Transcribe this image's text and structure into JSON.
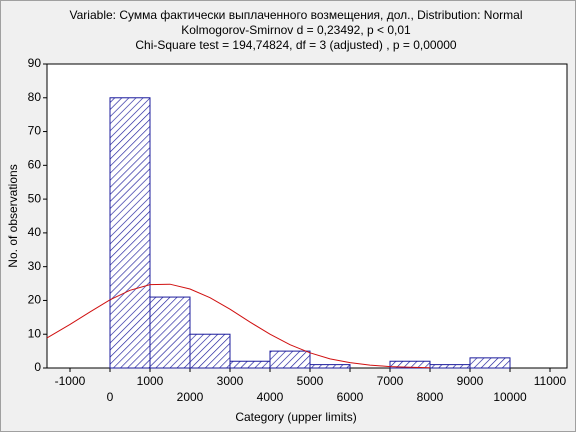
{
  "chart_data": {
    "type": "histogram",
    "title": [
      "Variable: Сумма фактически выплаченного возмещения, дол., Distribution: Normal",
      "Kolmogorov-Smirnov d = 0,23492, p < 0,01",
      "Chi-Square test = 194,74824, df = 3 (adjusted) , p = 0,00000"
    ],
    "x_label": "Category (upper limits)",
    "y_label": "No. of observations",
    "bins": [
      0,
      1000,
      2000,
      3000,
      4000,
      5000,
      6000,
      7000,
      8000,
      9000,
      10000
    ],
    "values": [
      80,
      21,
      10,
      2,
      5,
      1,
      0,
      2,
      1,
      3
    ],
    "color": "#1c1c9c",
    "fit_curve": {
      "color": "#d01010",
      "x": [
        -1575,
        -1000,
        -500,
        0,
        500,
        1000,
        1500,
        2000,
        2500,
        3000,
        3500,
        4000,
        4500,
        5000,
        5500,
        6000,
        6500,
        7000,
        7500,
        8000
      ],
      "values": [
        8.9,
        12.9,
        16.6,
        20.2,
        23.0,
        24.7,
        24.8,
        23.4,
        20.8,
        17.4,
        13.6,
        10.0,
        6.9,
        4.5,
        2.7,
        1.6,
        0.85,
        0.4,
        0.2,
        0.1
      ]
    },
    "xlim": [
      -1575,
      11425
    ],
    "ylim": [
      0,
      90
    ],
    "xticks": [
      -1000,
      0,
      1000,
      2000,
      3000,
      4000,
      5000,
      6000,
      7000,
      8000,
      9000,
      10000,
      11000
    ],
    "yticks": [
      0,
      10,
      20,
      30,
      40,
      50,
      60,
      70,
      80,
      90
    ]
  }
}
